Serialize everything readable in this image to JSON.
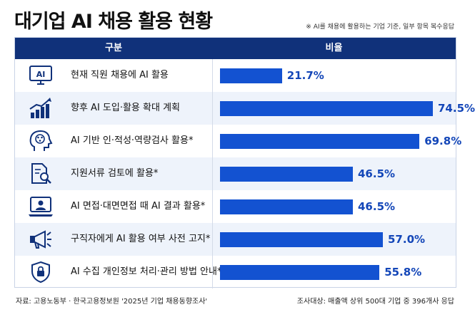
{
  "title": "대기업 AI 채용 활용 현황",
  "note": "※ AI를 채용에 활용하는 기업 기준, 일부 항목 복수응답",
  "header": {
    "col1": "구분",
    "col2": "비율"
  },
  "footer": {
    "source": "자료: 고용노동부 · 한국고용정보원 '2025년 기업 채용동향조사'",
    "survey": "조사대상: 매출액 상위 500대 기업 중 396개사 응답"
  },
  "colors": {
    "bar": "#1352d1",
    "header": "#10317a",
    "value": "#1346b8",
    "icon": "#10317a"
  },
  "chart_data": {
    "type": "bar",
    "orientation": "horizontal",
    "title": "대기업 AI 채용 활용 현황",
    "xlim": [
      0,
      80
    ],
    "categories": [
      "현재 직원 채용에 AI 활용",
      "향후 AI 도입·활용 확대 계획",
      "AI 기반 인·적성·역량검사 활용*",
      "지원서류 검토에 활용*",
      "AI 면접·대면면접 때 AI 결과 활용*",
      "구직자에게 AI 활용 여부 사전 고지*",
      "AI 수집 개인정보 처리·관리 방법 안내*"
    ],
    "values": [
      21.7,
      74.5,
      69.8,
      46.5,
      46.5,
      57.0,
      55.8
    ],
    "value_labels": [
      "21.7%",
      "74.5%",
      "69.8%",
      "46.5%",
      "46.5%",
      "57.0%",
      "55.8%"
    ],
    "icons": [
      "ai-screen-icon",
      "growth-chart-icon",
      "brain-head-icon",
      "document-search-icon",
      "video-interview-icon",
      "megaphone-icon",
      "security-shield-icon"
    ],
    "icon_text": "AI"
  }
}
